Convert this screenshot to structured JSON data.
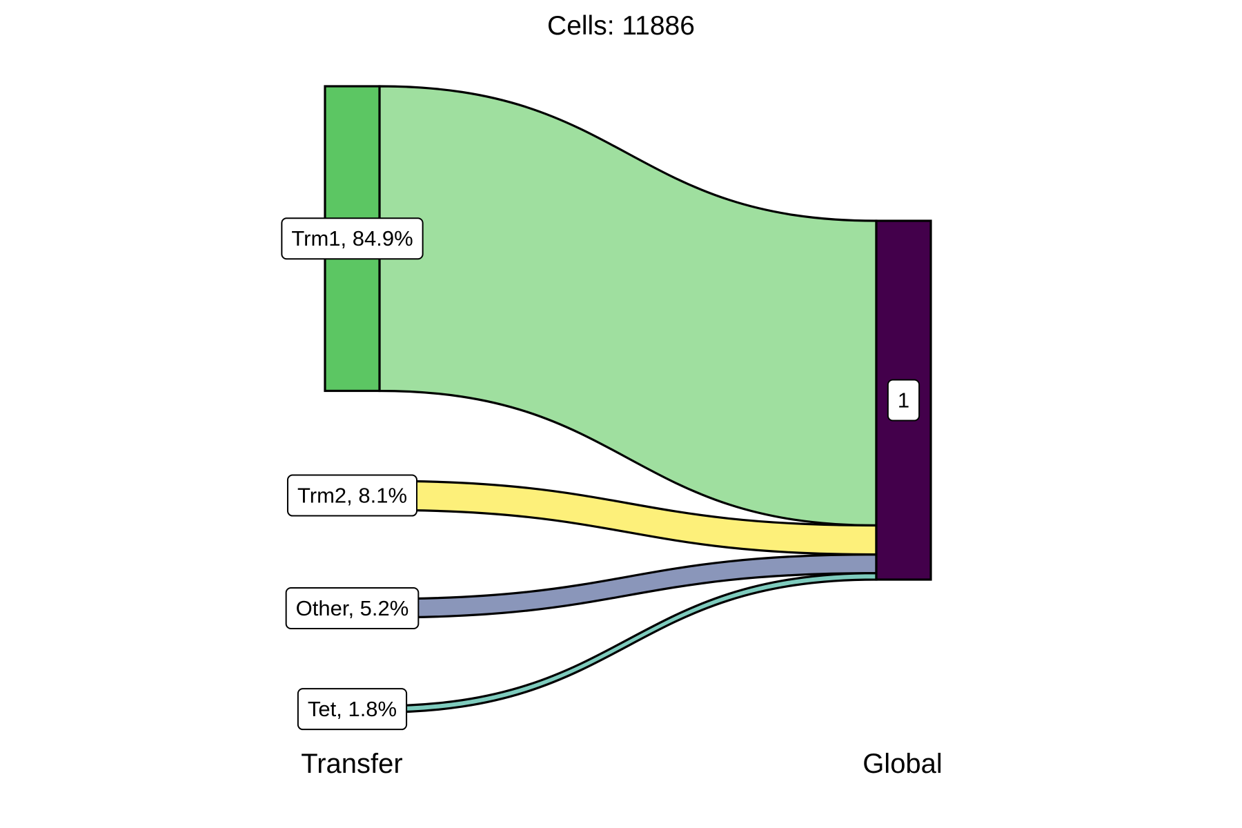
{
  "chart_data": {
    "type": "sankey",
    "title": "Cells:  11886",
    "axes": [
      "Transfer",
      "Global"
    ],
    "source_nodes": [
      {
        "name": "Trm1",
        "label": "Trm1, 84.9%",
        "percent": 84.9,
        "node_color": "#5cc663",
        "flow_color": "#9fdf9f"
      },
      {
        "name": "Trm2",
        "label": "Trm2, 8.1%",
        "percent": 8.1,
        "node_color": "#fdf07a",
        "flow_color": "#fdf07a"
      },
      {
        "name": "Other",
        "label": "Other, 5.2%",
        "percent": 5.2,
        "node_color": "#8a96ba",
        "flow_color": "#8a96ba"
      },
      {
        "name": "Tet",
        "label": "Tet, 1.8%",
        "percent": 1.8,
        "node_color": "#7ecbbd",
        "flow_color": "#7ecbbd"
      }
    ],
    "target_nodes": [
      {
        "name": "1",
        "label": "1",
        "percent": 100,
        "node_color": "#43004b"
      }
    ],
    "flows": [
      {
        "from": "Trm1",
        "to": "1",
        "percent": 84.9
      },
      {
        "from": "Trm2",
        "to": "1",
        "percent": 8.1
      },
      {
        "from": "Other",
        "to": "1",
        "percent": 5.2
      },
      {
        "from": "Tet",
        "to": "1",
        "percent": 1.8
      }
    ]
  }
}
